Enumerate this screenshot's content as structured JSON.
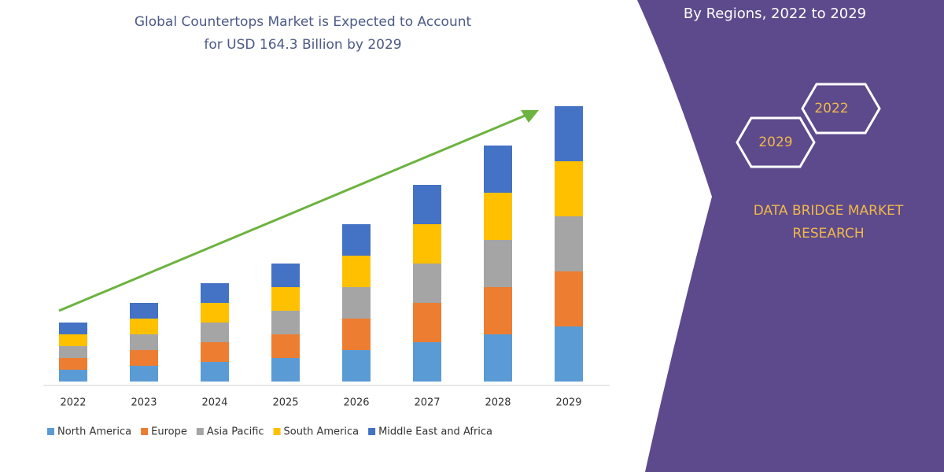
{
  "chart_data": {
    "type": "stacked-bar",
    "title": [
      "Global Countertops Market is Expected to Account",
      "for USD 164.3 Billion by 2029"
    ],
    "subtitle": "By Regions, 2022 to 2029",
    "badges": [
      "2022",
      "2029"
    ],
    "brand": [
      "DATA BRIDGE MARKET",
      "RESEARCH"
    ],
    "categories": [
      "2022",
      "2023",
      "2024",
      "2025",
      "2026",
      "2027",
      "2028",
      "2029"
    ],
    "series": [
      {
        "name": "North America",
        "color": "#5b9bd5",
        "values": [
          15,
          20,
          25,
          30,
          40,
          50,
          60,
          70
        ]
      },
      {
        "name": "Europe",
        "color": "#ed7d31",
        "values": [
          15,
          20,
          25,
          30,
          40,
          50,
          60,
          70
        ]
      },
      {
        "name": "Asia Pacific",
        "color": "#a5a5a5",
        "values": [
          15,
          20,
          25,
          30,
          40,
          50,
          60,
          70
        ]
      },
      {
        "name": "South America",
        "color": "#ffc000",
        "values": [
          15,
          20,
          25,
          30,
          40,
          50,
          60,
          70
        ]
      },
      {
        "name": "Middle East and Africa",
        "color": "#4472c4",
        "values": [
          15,
          20,
          25,
          30,
          40,
          50,
          60,
          70
        ]
      }
    ]
  }
}
